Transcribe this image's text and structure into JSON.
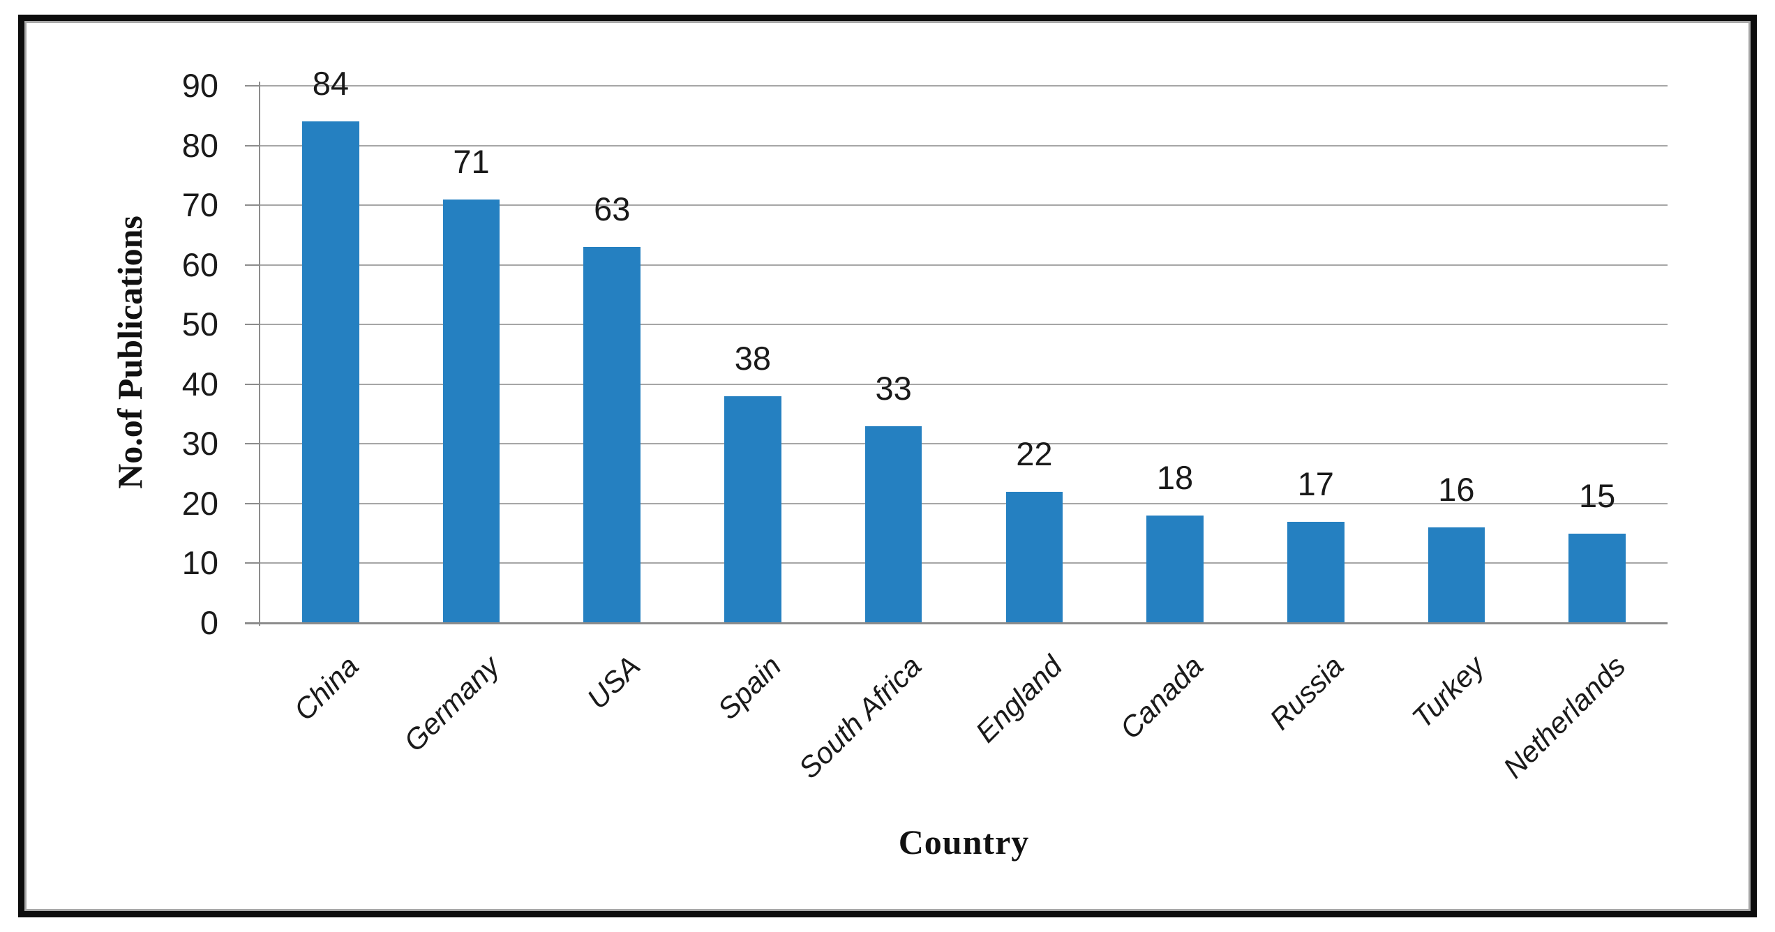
{
  "chart_data": {
    "type": "bar",
    "title": "",
    "categories": [
      "China",
      "Germany",
      "USA",
      "Spain",
      "South Africa",
      "England",
      "Canada",
      "Russia",
      "Turkey",
      "Netherlands"
    ],
    "values": [
      84,
      71,
      63,
      38,
      33,
      22,
      18,
      17,
      16,
      15
    ],
    "xlabel": "Country",
    "ylabel": "No.of Publications",
    "ylim": [
      0,
      90
    ],
    "ytick_step": 10,
    "ytick_labels": [
      "0",
      "10",
      "20",
      "30",
      "40",
      "50",
      "60",
      "70",
      "80",
      "90"
    ],
    "grid": true,
    "legend": "none",
    "data_labels_shown": true,
    "colors": {
      "bar": "#2580C1",
      "gridline": "#a6a6a6",
      "axis": "#8c8c8c",
      "text": "#1a1a1a",
      "frame_border": "#0d0d0d",
      "frame_inner_line": "#a8a8a8",
      "background": "#ffffff"
    }
  }
}
